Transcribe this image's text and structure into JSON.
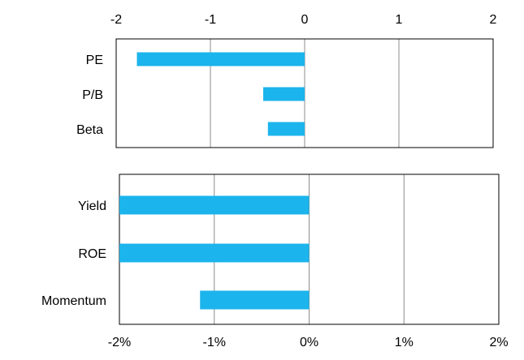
{
  "chart_data": [
    {
      "type": "bar",
      "orientation": "horizontal",
      "categories": [
        "PE",
        "P/B",
        "Beta"
      ],
      "values": [
        -1.78,
        -0.44,
        -0.39
      ],
      "xlim": [
        -2,
        2
      ],
      "x_ticks": [
        "-2",
        "-1",
        "0",
        "1",
        "2"
      ],
      "x_tick_values": [
        -2,
        -1,
        0,
        1,
        2
      ],
      "axis_position": "top",
      "grid": "vertical",
      "bar_color": "#1CB4EC"
    },
    {
      "type": "bar",
      "orientation": "horizontal",
      "categories": [
        "Yield",
        "ROE",
        "Momentum"
      ],
      "values": [
        -0.02,
        -0.02,
        -0.0115
      ],
      "xlim": [
        -0.02,
        0.02
      ],
      "x_ticks": [
        "-2%",
        "-1%",
        "0%",
        "1%",
        "2%"
      ],
      "x_tick_values": [
        -0.02,
        -0.01,
        0,
        0.01,
        0.02
      ],
      "axis_position": "bottom",
      "grid": "vertical",
      "bar_color": "#1CB4EC"
    }
  ]
}
